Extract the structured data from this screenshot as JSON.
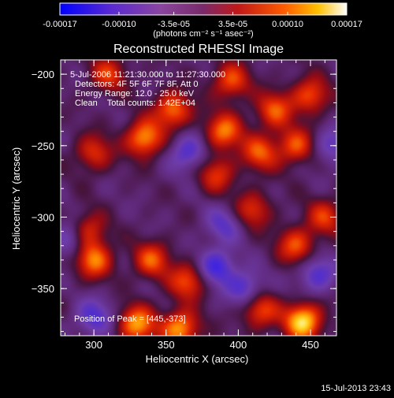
{
  "chart_data": {
    "type": "heatmap",
    "title": "Reconstructed RHESSI Image",
    "xlabel": "Heliocentric X (arcsec)",
    "ylabel": "Heliocentric Y (arcsec)",
    "xlim": [
      277,
      468
    ],
    "ylim": [
      -383,
      -190
    ],
    "x_ticks": [
      300,
      350,
      400,
      450
    ],
    "y_ticks": [
      -200,
      -250,
      -300,
      -350
    ],
    "colorbar": {
      "colormap": "rhessi-hot (blue-purple-red-yellow-white)",
      "range": [
        -0.00017,
        0.00017
      ],
      "tick_labels": [
        "-0.00017",
        "-0.00010",
        "-3.5e-05",
        "3.5e-05",
        "0.00010",
        "0.00017"
      ],
      "tick_values": [
        -0.00017,
        -0.0001,
        -3.5e-05,
        3.5e-05,
        0.0001,
        0.00017
      ],
      "label": "(photons cm⁻² s⁻¹ asec⁻²)"
    },
    "annotations": [
      "5-Jul-2006 11:21:30.000 to 11:27:30.000",
      "Detectors: 4F 5F 6F 7F 8F, Att 0",
      "Energy Range: 12.0 - 25.0 keV",
      "Clean    Total counts: 1.42E+04",
      "Position of Peak = [445,-373]"
    ],
    "peak": [
      445,
      -373
    ],
    "bright_sources": [
      {
        "x": 335,
        "y": -245,
        "level": 0.8
      },
      {
        "x": 355,
        "y": -225,
        "level": 0.7
      },
      {
        "x": 390,
        "y": -240,
        "level": 0.7
      },
      {
        "x": 415,
        "y": -255,
        "level": 0.6
      },
      {
        "x": 450,
        "y": -215,
        "level": 0.6
      },
      {
        "x": 440,
        "y": -250,
        "level": 0.6
      },
      {
        "x": 300,
        "y": -255,
        "level": 0.5
      },
      {
        "x": 385,
        "y": -270,
        "level": 0.5
      },
      {
        "x": 295,
        "y": -310,
        "level": 0.6
      },
      {
        "x": 300,
        "y": -330,
        "level": 0.7
      },
      {
        "x": 340,
        "y": -330,
        "level": 0.6
      },
      {
        "x": 365,
        "y": -345,
        "level": 0.6
      },
      {
        "x": 410,
        "y": -295,
        "level": 0.5
      },
      {
        "x": 440,
        "y": -320,
        "level": 0.6
      },
      {
        "x": 460,
        "y": -300,
        "level": 0.5
      },
      {
        "x": 330,
        "y": -375,
        "level": 0.8
      },
      {
        "x": 360,
        "y": -378,
        "level": 0.8
      },
      {
        "x": 445,
        "y": -373,
        "level": 1.0
      },
      {
        "x": 415,
        "y": -365,
        "level": 0.6
      },
      {
        "x": 310,
        "y": -200,
        "level": 0.5
      },
      {
        "x": 395,
        "y": -205,
        "level": 0.6
      },
      {
        "x": 425,
        "y": -225,
        "level": 0.6
      }
    ],
    "dark_sources": [
      {
        "x": 285,
        "y": -315,
        "level": -0.5
      },
      {
        "x": 365,
        "y": -255,
        "level": -0.5
      },
      {
        "x": 385,
        "y": -335,
        "level": -0.6
      },
      {
        "x": 405,
        "y": -350,
        "level": -0.5
      },
      {
        "x": 455,
        "y": -340,
        "level": -0.5
      },
      {
        "x": 300,
        "y": -370,
        "level": -0.5
      },
      {
        "x": 390,
        "y": -305,
        "level": -0.4
      },
      {
        "x": 465,
        "y": -250,
        "level": -0.4
      }
    ]
  },
  "footer": {
    "timestamp": "15-Jul-2013 23:43"
  }
}
